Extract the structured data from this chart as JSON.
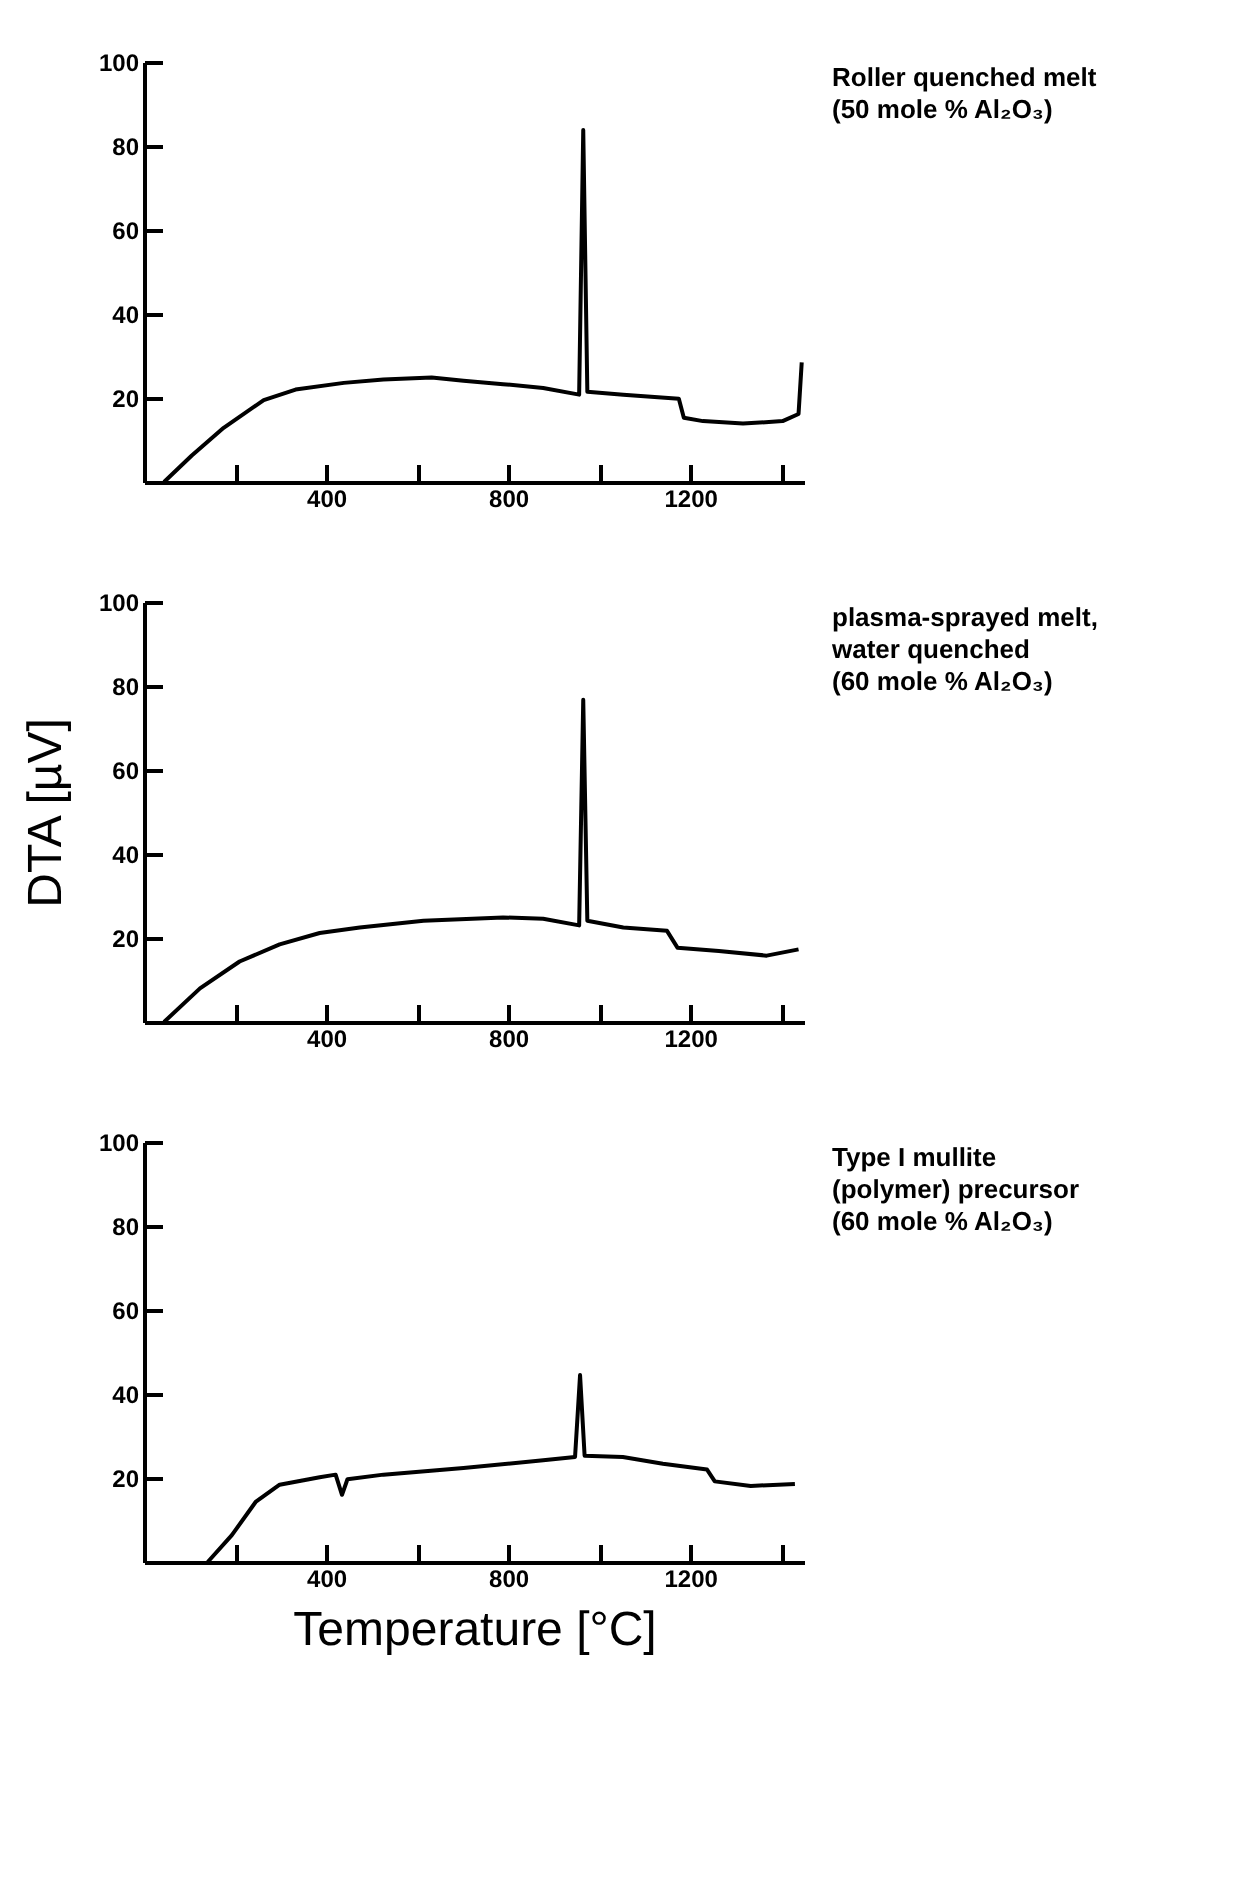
{
  "chart_data": [
    {
      "type": "line",
      "annotations": [
        "Roller quenched melt\n(50 mole % Al₂O₃)"
      ],
      "color": "#000000",
      "line_style": "solid",
      "x": [
        44,
        105,
        175,
        263,
        333,
        439,
        526,
        632,
        702,
        789,
        877,
        956,
        965,
        974,
        1053,
        1175,
        1186,
        1228,
        1316,
        1403,
        1438,
        1445
      ],
      "values": [
        0,
        6.3,
        12.9,
        19.5,
        22,
        23.6,
        24.4,
        24.9,
        24.1,
        23.3,
        22.4,
        20.8,
        83.8,
        21.5,
        20.8,
        19.8,
        15.3,
        14.5,
        13.9,
        14.5,
        16.2,
        28.5
      ],
      "xlim": [
        0,
        1450
      ],
      "ylim": [
        0,
        100
      ],
      "yticks": [
        20,
        40,
        60,
        80,
        100
      ],
      "xticks": [
        {
          "value": 200,
          "label": null
        },
        400,
        {
          "value": 600,
          "label": null
        },
        800,
        {
          "value": 1000,
          "label": null
        },
        1200,
        {
          "value": 1400,
          "label": null
        }
      ]
    },
    {
      "type": "line",
      "annotations": [
        "plasma-sprayed melt,\nwater quenched\n(60 mole % Al₂O₃)"
      ],
      "ylabel": "DTA [µV]",
      "color": "#000000",
      "line_style": "solid",
      "x": [
        44,
        123,
        210,
        298,
        386,
        474,
        614,
        789,
        877,
        956,
        965,
        974,
        1053,
        1149,
        1172,
        1263,
        1368,
        1438
      ],
      "values": [
        0,
        8,
        14.4,
        18.5,
        21.2,
        22.5,
        24.1,
        24.9,
        24.6,
        23,
        76.7,
        24.1,
        22.5,
        21.7,
        17.7,
        16.9,
        15.8,
        17.3
      ],
      "xlim": [
        0,
        1450
      ],
      "ylim": [
        0,
        100
      ],
      "yticks": [
        20,
        40,
        60,
        80,
        100
      ],
      "xticks": [
        {
          "value": 200,
          "label": null
        },
        400,
        {
          "value": 600,
          "label": null
        },
        800,
        {
          "value": 1000,
          "label": null
        },
        1200,
        {
          "value": 1400,
          "label": null
        }
      ]
    },
    {
      "type": "line",
      "annotations": [
        "Type I mullite\n(polymer) precursor\n(60 mole % Al₂O₃)"
      ],
      "xlabel": "Temperature [°C]",
      "color": "#000000",
      "line_style": "solid",
      "x": [
        140,
        193,
        246,
        298,
        386,
        421,
        435,
        447,
        526,
        702,
        877,
        947,
        958,
        968,
        1052,
        1140,
        1237,
        1254,
        1333,
        1430
      ],
      "values": [
        0,
        6.4,
        14.4,
        18.4,
        20.2,
        20.8,
        16,
        19.7,
        20.8,
        22.4,
        24.2,
        25,
        44.5,
        25.3,
        25,
        23.4,
        22,
        19.2,
        18.1,
        18.6
      ],
      "xlim": [
        0,
        1450
      ],
      "ylim": [
        0,
        100
      ],
      "yticks": [
        20,
        40,
        60,
        80,
        100
      ],
      "xticks": [
        {
          "value": 200,
          "label": null
        },
        400,
        {
          "value": 600,
          "label": null
        },
        800,
        {
          "value": 1000,
          "label": null
        },
        1200,
        {
          "value": 1400,
          "label": null
        }
      ]
    }
  ]
}
